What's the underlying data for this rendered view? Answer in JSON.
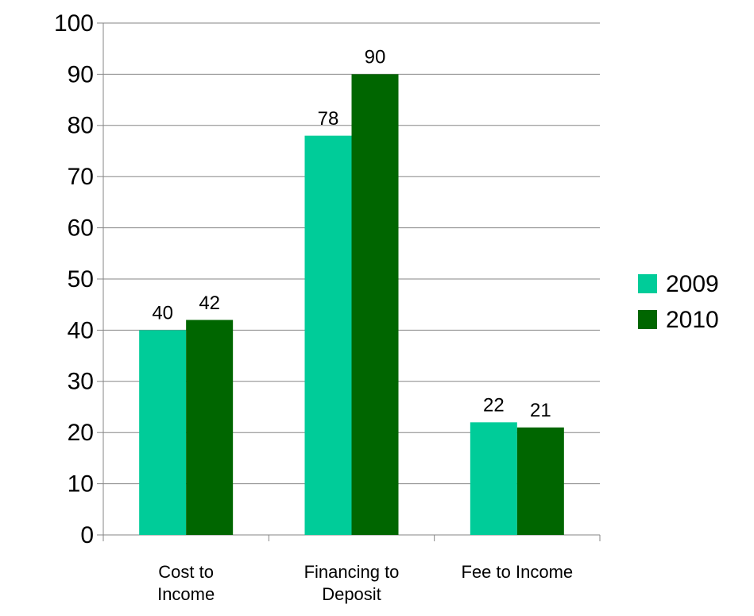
{
  "chart_data": {
    "type": "bar",
    "categories": [
      "Cost to Income",
      "Financing to Deposit",
      "Fee to Income"
    ],
    "series": [
      {
        "name": "2009",
        "color": "#00cc99",
        "values": [
          40,
          78,
          22
        ]
      },
      {
        "name": "2010",
        "color": "#006600",
        "values": [
          42,
          90,
          21
        ]
      }
    ],
    "ylim": [
      0,
      100
    ],
    "yticks": [
      0,
      10,
      20,
      30,
      40,
      50,
      60,
      70,
      80,
      90,
      100
    ],
    "grid": true,
    "legend": "right"
  }
}
